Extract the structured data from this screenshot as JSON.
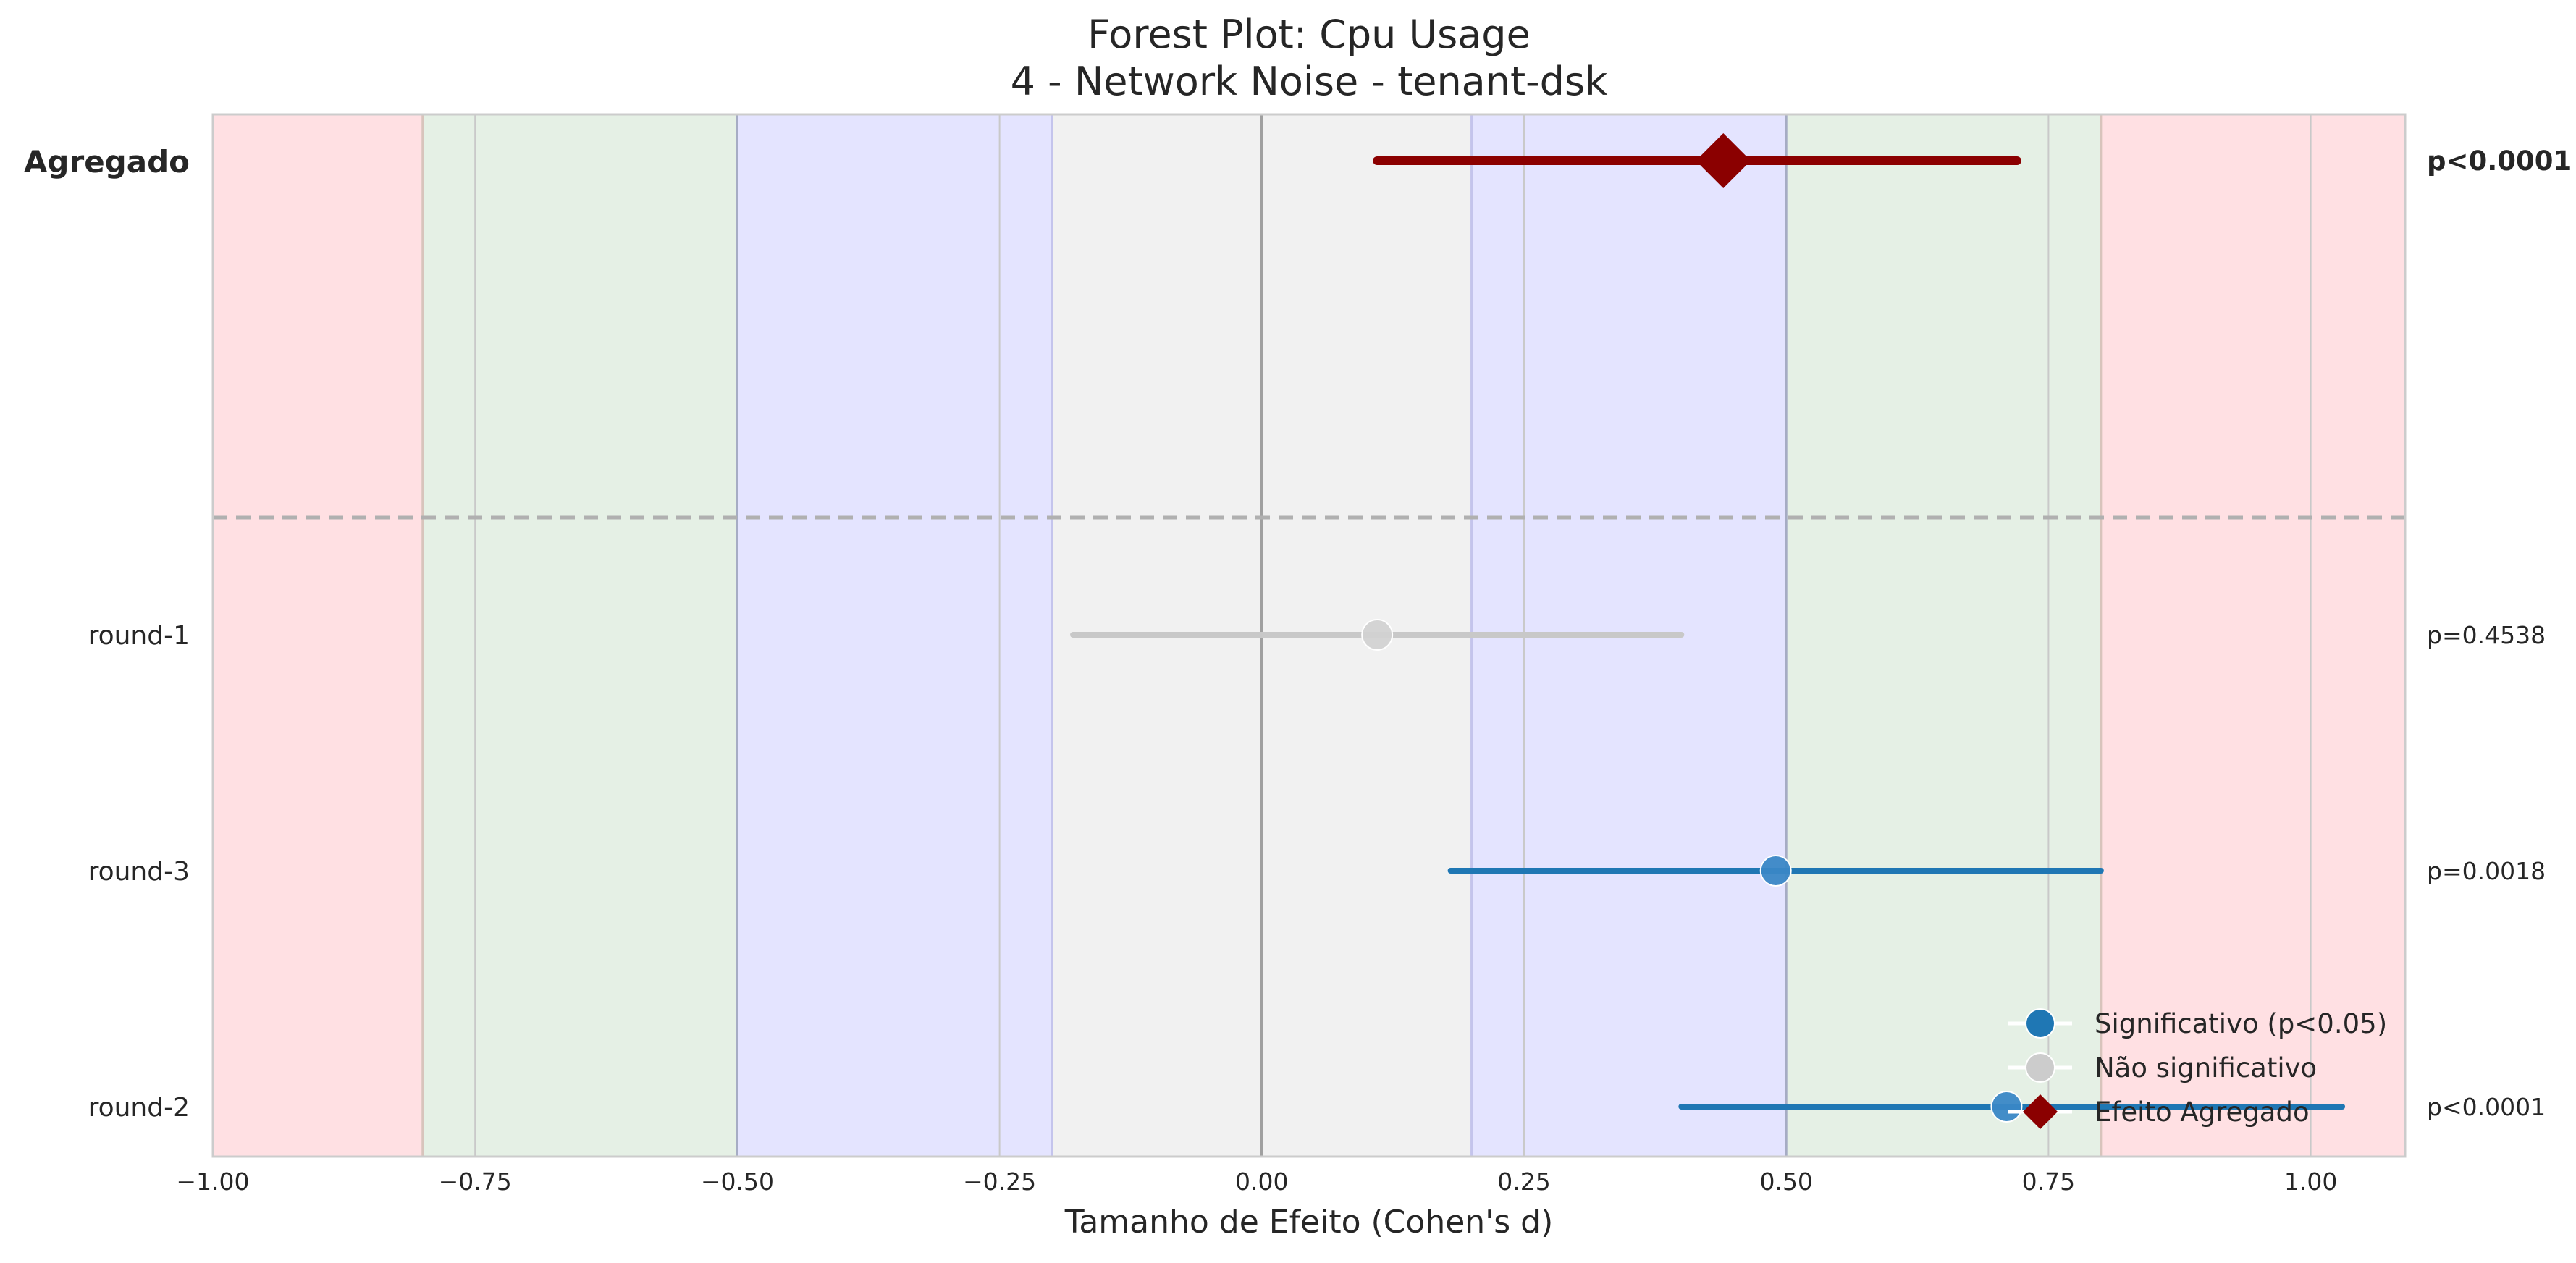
{
  "chart_data": {
    "type": "forest",
    "title": "Forest Plot: Cpu Usage",
    "subtitle": "4 - Network Noise - tenant-dsk",
    "xlabel": "Tamanho de Efeito (Cohen's d)",
    "xlim": [
      -1.0,
      1.09
    ],
    "xticks": [
      -1.0,
      -0.75,
      -0.5,
      -0.25,
      0.0,
      0.25,
      0.5,
      0.75,
      1.0
    ],
    "xtick_labels": [
      "−1.00",
      "−0.75",
      "−0.50",
      "−0.25",
      "0.00",
      "0.25",
      "0.50",
      "0.75",
      "1.00"
    ],
    "bands": [
      {
        "from": -1.09,
        "to": -0.8,
        "color": "#ffe0e3"
      },
      {
        "from": -0.8,
        "to": -0.5,
        "color": "#e5f0e5"
      },
      {
        "from": -0.5,
        "to": -0.2,
        "color": "#e4e4ff"
      },
      {
        "from": -0.2,
        "to": 0.2,
        "color": "#f1f1f1"
      },
      {
        "from": 0.2,
        "to": 0.5,
        "color": "#e4e4ff"
      },
      {
        "from": 0.5,
        "to": 0.8,
        "color": "#e5f0e5"
      },
      {
        "from": 0.8,
        "to": 1.09,
        "color": "#ffe0e3"
      }
    ],
    "reference_lines": [
      -0.8,
      -0.5,
      -0.2,
      0.0,
      0.2,
      0.5,
      0.8
    ],
    "studies": [
      {
        "label": "round-1",
        "effect": 0.11,
        "ci_low": -0.18,
        "ci_high": 0.4,
        "p_label": "p=0.4538",
        "significant": false
      },
      {
        "label": "round-3",
        "effect": 0.49,
        "ci_low": 0.18,
        "ci_high": 0.8,
        "p_label": "p=0.0018",
        "significant": true
      },
      {
        "label": "round-2",
        "effect": 0.71,
        "ci_low": 0.4,
        "ci_high": 1.03,
        "p_label": "p<0.0001",
        "significant": true
      }
    ],
    "aggregate": {
      "label": "Agregado",
      "effect": 0.44,
      "ci_low": 0.11,
      "ci_high": 0.72,
      "p_label": "p<0.0001"
    },
    "legend": {
      "position": "bottom-right",
      "entries": [
        {
          "label": "Significativo (p<0.05)",
          "marker": "circle",
          "color": "#1f77b4"
        },
        {
          "label": "Não significativo",
          "marker": "circle",
          "color": "#cccccc"
        },
        {
          "label": "Efeito Agregado",
          "marker": "diamond",
          "color": "#8b0000"
        }
      ]
    },
    "colors": {
      "significant": "#1f77b4",
      "not_significant": "#c8c8c8",
      "aggregate": "#8b0000",
      "separator": "#b0b0b0",
      "zero_line": "#a0a0a0"
    }
  }
}
